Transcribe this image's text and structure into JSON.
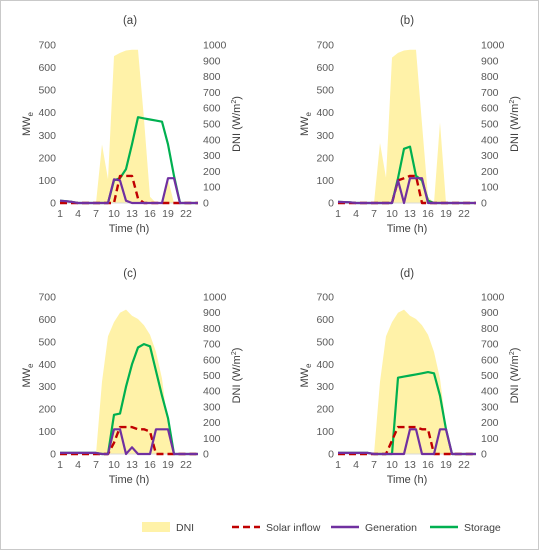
{
  "legend": [
    {
      "name": "DNI",
      "color": "#fff2a8",
      "style": "area"
    },
    {
      "name": "Solar inflow",
      "color": "#c00000",
      "style": "dash"
    },
    {
      "name": "Generation",
      "color": "#7030a0",
      "style": "solid"
    },
    {
      "name": "Storage",
      "color": "#00b050",
      "style": "solid"
    }
  ],
  "chart_data": [
    {
      "type": "line",
      "title": "(a)",
      "xlabel": "Time (h)",
      "ylabel": "MWe",
      "ylabel_main": "MW",
      "ylabel_sub": "e",
      "y2label": "DNI (W/m²)",
      "y2label_main": "DNI (W/m",
      "y2label_sup": "2",
      "y2label_end": ")",
      "xlim": [
        1,
        24
      ],
      "ylim": [
        0,
        700
      ],
      "y2lim": [
        0,
        1000
      ],
      "xticks": [
        1,
        4,
        7,
        10,
        13,
        16,
        19,
        22
      ],
      "yticks": [
        0,
        100,
        200,
        300,
        400,
        500,
        600,
        700
      ],
      "y2ticks": [
        0,
        100,
        200,
        300,
        400,
        500,
        600,
        700,
        800,
        900,
        1000
      ],
      "hours": [
        1,
        2,
        3,
        4,
        5,
        6,
        7,
        8,
        9,
        10,
        11,
        12,
        13,
        14,
        15,
        16,
        17,
        18,
        19,
        20,
        21,
        22,
        23,
        24
      ],
      "series": [
        {
          "name": "DNI",
          "axis": "right",
          "values": [
            0,
            0,
            0,
            0,
            0,
            0,
            0,
            370,
            150,
            930,
            950,
            965,
            970,
            970,
            530,
            40,
            0,
            0,
            150,
            0,
            0,
            0,
            0,
            0
          ]
        },
        {
          "name": "Solar inflow",
          "axis": "left",
          "values": [
            0,
            0,
            0,
            0,
            0,
            0,
            0,
            0,
            0,
            0,
            120,
            120,
            120,
            20,
            0,
            0,
            0,
            0,
            0,
            0,
            0,
            0,
            0,
            0
          ]
        },
        {
          "name": "Generation",
          "axis": "left",
          "values": [
            10,
            8,
            5,
            0,
            0,
            0,
            0,
            0,
            0,
            105,
            100,
            10,
            0,
            0,
            0,
            0,
            0,
            0,
            110,
            110,
            0,
            0,
            0,
            0
          ]
        },
        {
          "name": "Storage",
          "axis": "left",
          "values": [
            10,
            8,
            5,
            0,
            0,
            0,
            0,
            0,
            0,
            100,
            110,
            150,
            260,
            380,
            375,
            370,
            365,
            360,
            260,
            120,
            0,
            0,
            0,
            0
          ]
        }
      ]
    },
    {
      "type": "line",
      "title": "(b)",
      "xlabel": "Time (h)",
      "ylabel": "MWe",
      "ylabel_main": "MW",
      "ylabel_sub": "e",
      "y2label": "DNI (W/m²)",
      "y2label_main": "DNI (W/m",
      "y2label_sup": "2",
      "y2label_end": ")",
      "xlim": [
        1,
        24
      ],
      "ylim": [
        0,
        700
      ],
      "y2lim": [
        0,
        1000
      ],
      "xticks": [
        1,
        4,
        7,
        10,
        13,
        16,
        19,
        22
      ],
      "yticks": [
        0,
        100,
        200,
        300,
        400,
        500,
        600,
        700
      ],
      "y2ticks": [
        0,
        100,
        200,
        300,
        400,
        500,
        600,
        700,
        800,
        900,
        1000
      ],
      "hours": [
        1,
        2,
        3,
        4,
        5,
        6,
        7,
        8,
        9,
        10,
        11,
        12,
        13,
        14,
        15,
        16,
        17,
        18,
        19,
        20,
        21,
        22,
        23,
        24
      ],
      "series": [
        {
          "name": "DNI",
          "axis": "right",
          "values": [
            0,
            0,
            0,
            0,
            0,
            0,
            0,
            380,
            160,
            920,
            950,
            965,
            970,
            970,
            500,
            40,
            0,
            510,
            0,
            0,
            0,
            0,
            0,
            0
          ]
        },
        {
          "name": "Solar inflow",
          "axis": "left",
          "values": [
            0,
            0,
            0,
            0,
            0,
            0,
            0,
            0,
            0,
            0,
            100,
            110,
            120,
            120,
            0,
            0,
            0,
            0,
            0,
            0,
            0,
            0,
            0,
            0
          ]
        },
        {
          "name": "Generation",
          "axis": "left",
          "values": [
            5,
            4,
            3,
            0,
            0,
            0,
            0,
            0,
            0,
            0,
            100,
            0,
            110,
            110,
            110,
            0,
            0,
            0,
            0,
            0,
            0,
            0,
            0,
            0
          ]
        },
        {
          "name": "Storage",
          "axis": "left",
          "values": [
            5,
            4,
            3,
            0,
            0,
            0,
            0,
            0,
            0,
            0,
            110,
            240,
            250,
            120,
            100,
            10,
            0,
            0,
            0,
            0,
            0,
            0,
            0,
            0
          ]
        }
      ]
    },
    {
      "type": "line",
      "title": "(c)",
      "xlabel": "Time (h)",
      "ylabel": "MWe",
      "ylabel_main": "MW",
      "ylabel_sub": "e",
      "y2label": "DNI (W/m²)",
      "y2label_main": "DNI (W/m",
      "y2label_sup": "2",
      "y2label_end": ")",
      "xlim": [
        1,
        24
      ],
      "ylim": [
        0,
        700
      ],
      "y2lim": [
        0,
        1000
      ],
      "xticks": [
        1,
        4,
        7,
        10,
        13,
        16,
        19,
        22
      ],
      "yticks": [
        0,
        100,
        200,
        300,
        400,
        500,
        600,
        700
      ],
      "y2ticks": [
        0,
        100,
        200,
        300,
        400,
        500,
        600,
        700,
        800,
        900,
        1000
      ],
      "hours": [
        1,
        2,
        3,
        4,
        5,
        6,
        7,
        8,
        9,
        10,
        11,
        12,
        13,
        14,
        15,
        16,
        17,
        18,
        19,
        20,
        21,
        22,
        23,
        24
      ],
      "series": [
        {
          "name": "DNI",
          "axis": "right",
          "values": [
            0,
            0,
            0,
            0,
            0,
            0,
            0,
            460,
            750,
            840,
            900,
            920,
            880,
            860,
            820,
            760,
            650,
            480,
            180,
            0,
            0,
            0,
            0,
            0
          ]
        },
        {
          "name": "Solar inflow",
          "axis": "left",
          "values": [
            0,
            0,
            0,
            0,
            0,
            0,
            0,
            0,
            0,
            50,
            120,
            120,
            120,
            110,
            110,
            100,
            0,
            0,
            0,
            0,
            0,
            0,
            0,
            0
          ]
        },
        {
          "name": "Generation",
          "axis": "left",
          "values": [
            5,
            5,
            5,
            5,
            5,
            5,
            5,
            0,
            0,
            110,
            110,
            0,
            30,
            0,
            0,
            0,
            110,
            110,
            110,
            0,
            0,
            0,
            0,
            0
          ]
        },
        {
          "name": "Storage",
          "axis": "left",
          "values": [
            5,
            5,
            5,
            5,
            5,
            5,
            5,
            0,
            0,
            175,
            180,
            300,
            400,
            475,
            490,
            480,
            370,
            260,
            160,
            0,
            0,
            0,
            0,
            0
          ]
        }
      ]
    },
    {
      "type": "line",
      "title": "(d)",
      "xlabel": "Time (h)",
      "ylabel": "MWe",
      "ylabel_main": "MW",
      "ylabel_sub": "e",
      "y2label": "DNI (W/m²)",
      "y2label_main": "DNI (W/m",
      "y2label_sup": "2",
      "y2label_end": ")",
      "xlim": [
        1,
        24
      ],
      "ylim": [
        0,
        700
      ],
      "y2lim": [
        0,
        1000
      ],
      "xticks": [
        1,
        4,
        7,
        10,
        13,
        16,
        19,
        22
      ],
      "yticks": [
        0,
        100,
        200,
        300,
        400,
        500,
        600,
        700
      ],
      "y2ticks": [
        0,
        100,
        200,
        300,
        400,
        500,
        600,
        700,
        800,
        900,
        1000
      ],
      "hours": [
        1,
        2,
        3,
        4,
        5,
        6,
        7,
        8,
        9,
        10,
        11,
        12,
        13,
        14,
        15,
        16,
        17,
        18,
        19,
        20,
        21,
        22,
        23,
        24
      ],
      "series": [
        {
          "name": "DNI",
          "axis": "right",
          "values": [
            0,
            0,
            0,
            0,
            0,
            0,
            0,
            460,
            750,
            840,
            900,
            920,
            880,
            860,
            820,
            760,
            650,
            480,
            180,
            0,
            0,
            0,
            0,
            0
          ]
        },
        {
          "name": "Solar inflow",
          "axis": "left",
          "values": [
            0,
            0,
            0,
            0,
            0,
            0,
            0,
            0,
            0,
            60,
            120,
            120,
            120,
            120,
            110,
            110,
            0,
            0,
            0,
            0,
            0,
            0,
            0,
            0
          ]
        },
        {
          "name": "Generation",
          "axis": "left",
          "values": [
            5,
            5,
            5,
            5,
            5,
            5,
            0,
            0,
            0,
            0,
            0,
            0,
            110,
            110,
            0,
            0,
            0,
            110,
            110,
            0,
            0,
            0,
            0,
            0
          ]
        },
        {
          "name": "Storage",
          "axis": "left",
          "values": [
            5,
            5,
            5,
            5,
            5,
            5,
            0,
            0,
            0,
            0,
            340,
            345,
            350,
            355,
            360,
            365,
            360,
            260,
            110,
            0,
            0,
            0,
            0,
            0
          ]
        }
      ]
    }
  ]
}
